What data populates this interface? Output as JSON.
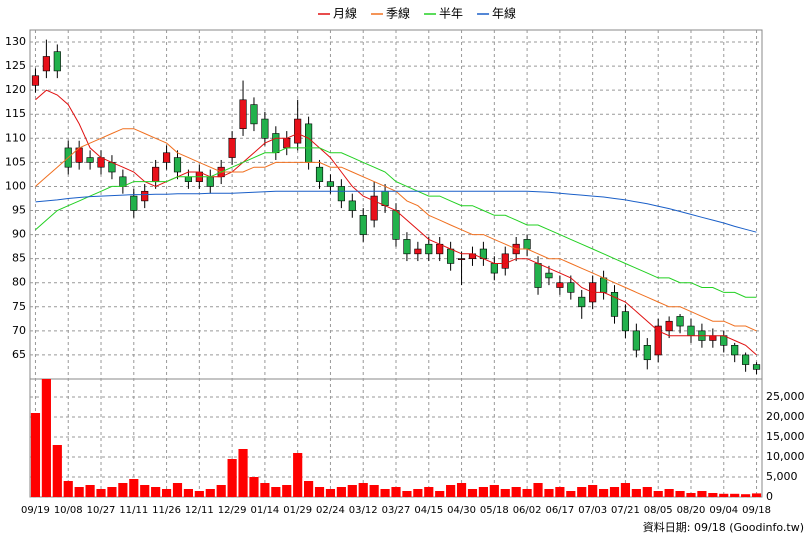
{
  "chart_data": [
    {
      "type": "candlestick",
      "categories": [
        "09/19",
        null,
        null,
        "10/08",
        null,
        null,
        "10/27",
        null,
        null,
        "11/11",
        null,
        null,
        "11/26",
        null,
        null,
        "12/11",
        null,
        null,
        "12/29",
        null,
        null,
        "01/14",
        null,
        null,
        "01/29",
        null,
        null,
        "02/24",
        null,
        null,
        "03/12",
        null,
        null,
        "03/27",
        null,
        null,
        "04/15",
        null,
        null,
        "04/30",
        null,
        null,
        "05/18",
        null,
        null,
        "06/02",
        null,
        null,
        "06/17",
        null,
        null,
        "07/03",
        null,
        null,
        "07/21",
        null,
        null,
        "08/05",
        null,
        null,
        "08/20",
        null,
        null,
        "09/04",
        null,
        null,
        "09/18"
      ],
      "open": [
        121,
        124,
        128,
        108,
        105,
        106,
        104,
        105,
        102,
        98,
        97,
        101,
        105,
        106,
        102,
        101,
        102,
        102,
        106,
        112,
        117,
        114,
        111,
        108,
        109,
        113,
        104,
        101,
        100,
        97,
        94,
        93,
        99,
        95,
        89,
        86,
        88,
        86,
        87,
        85,
        85,
        87,
        84,
        83,
        86,
        89,
        84,
        82,
        79,
        80,
        77,
        76,
        81,
        78,
        74,
        70,
        67,
        65,
        70,
        73,
        71,
        70,
        68,
        69,
        67,
        65,
        63
      ],
      "high": [
        124.5,
        130.5,
        129.5,
        109.5,
        109.5,
        107.5,
        107.5,
        106.5,
        103.5,
        99.5,
        100.5,
        105.5,
        108.5,
        107.5,
        103.5,
        104.5,
        103.5,
        105.5,
        111.5,
        122,
        118.5,
        115.5,
        112.5,
        111.5,
        118,
        114.5,
        105.5,
        102.5,
        101.5,
        98.5,
        95.5,
        101,
        100.5,
        96.5,
        90.5,
        88.5,
        89.5,
        89.5,
        88.5,
        86.5,
        87.5,
        88.5,
        85.5,
        87.5,
        89.5,
        90,
        85.5,
        83.5,
        81.5,
        81.5,
        78.5,
        81.5,
        82.5,
        79.5,
        75.5,
        71.5,
        68.5,
        72.5,
        73,
        73.5,
        72.5,
        71.5,
        70.5,
        70,
        67.5,
        65.5,
        63.5
      ],
      "low": [
        119.5,
        122.5,
        122.5,
        102.5,
        103.5,
        103.5,
        102.5,
        101.5,
        98.5,
        93.5,
        95.5,
        99.5,
        103.5,
        101.5,
        99.5,
        99.5,
        98.5,
        100.5,
        104.5,
        110.5,
        111.5,
        108.5,
        105.5,
        106.5,
        107.5,
        103.5,
        99.5,
        98.5,
        95.5,
        93.5,
        88.5,
        91.5,
        94.5,
        87.5,
        84.5,
        84.5,
        84.5,
        84.5,
        82.5,
        79.5,
        83.5,
        83.5,
        80.5,
        81.5,
        84.5,
        85.5,
        77.5,
        79.5,
        77.5,
        76.5,
        72.5,
        74.5,
        76.5,
        71.5,
        68.5,
        64.5,
        62,
        63.5,
        68.5,
        69.5,
        67.5,
        66.5,
        66.5,
        65.5,
        63.5,
        61.5,
        61
      ],
      "close": [
        123,
        127,
        124,
        104,
        108,
        105,
        106,
        103,
        100,
        95,
        99,
        104,
        107,
        103,
        101,
        103,
        100,
        104,
        110,
        118,
        113,
        110,
        107,
        110,
        114,
        105,
        101,
        100,
        97,
        95,
        90,
        98,
        96,
        89,
        86,
        87,
        86,
        88,
        84,
        85,
        86,
        85,
        82,
        86,
        88,
        87,
        79,
        81,
        80,
        78,
        75,
        80,
        78,
        73,
        70,
        66,
        64,
        71,
        72,
        71,
        69,
        68,
        69,
        67,
        65,
        63,
        62
      ],
      "up_color": "#e8101a",
      "down_color": "#22b14c",
      "series": [
        {
          "name": "月線",
          "color": "#e01010",
          "values": [
            118,
            120,
            119,
            117,
            113,
            108,
            106,
            105,
            104,
            103,
            101,
            100,
            101,
            102,
            103,
            103,
            102,
            102,
            103,
            105,
            107,
            109,
            110,
            110,
            111,
            110,
            108,
            106,
            103,
            100,
            98,
            97,
            96,
            95,
            93,
            91,
            89,
            88,
            87,
            86,
            86,
            85,
            84,
            84,
            85,
            85,
            84,
            83,
            82,
            81,
            79,
            78,
            78,
            77,
            76,
            74,
            72,
            70,
            69,
            69,
            69,
            69,
            69,
            69,
            68,
            67,
            65
          ]
        },
        {
          "name": "季線",
          "color": "#f07020",
          "values": [
            100,
            102,
            104,
            106,
            108,
            109,
            110,
            111,
            112,
            112,
            111,
            110,
            109,
            107,
            106,
            105,
            104,
            103,
            103,
            103,
            104,
            104,
            105,
            105,
            105,
            105,
            105,
            104,
            104,
            103,
            102,
            101,
            100,
            99,
            97,
            96,
            94,
            93,
            92,
            91,
            90,
            90,
            89,
            88,
            87,
            87,
            86,
            85,
            85,
            84,
            83,
            82,
            81,
            80,
            79,
            78,
            77,
            76,
            75,
            75,
            74,
            73,
            72,
            72,
            71,
            71,
            70
          ]
        },
        {
          "name": "半年",
          "color": "#22d022",
          "values": [
            91,
            93,
            95,
            96,
            97,
            98,
            99,
            100,
            100,
            101,
            101,
            101,
            101,
            102,
            102,
            102,
            102,
            103,
            104,
            105,
            106,
            107,
            107,
            108,
            108,
            108,
            108,
            107,
            107,
            106,
            105,
            104,
            103,
            101,
            100,
            99,
            98,
            98,
            97,
            96,
            96,
            95,
            94,
            94,
            93,
            92,
            92,
            91,
            90,
            89,
            88,
            87,
            86,
            85,
            84,
            83,
            82,
            81,
            81,
            80,
            80,
            79,
            79,
            78,
            78,
            77,
            77
          ]
        },
        {
          "name": "年線",
          "color": "#1a5fc8",
          "values": [
            96.8,
            97,
            97.2,
            97.5,
            97.7,
            97.9,
            98,
            98.1,
            98.2,
            98.3,
            98.3,
            98.4,
            98.4,
            98.5,
            98.5,
            98.5,
            98.6,
            98.6,
            98.6,
            98.7,
            98.8,
            98.9,
            99,
            99,
            99,
            99,
            99,
            99,
            99,
            99,
            99,
            99,
            99,
            99,
            99,
            99,
            99,
            99,
            99,
            99,
            99,
            99,
            99,
            99,
            99,
            99,
            98.9,
            98.8,
            98.6,
            98.4,
            98.2,
            98,
            97.8,
            97.5,
            97.2,
            96.8,
            96.4,
            95.9,
            95.4,
            94.8,
            94.2,
            93.6,
            93,
            92.4,
            91.7,
            91.1,
            90.5
          ]
        }
      ],
      "ylim": [
        60,
        132.5
      ],
      "yticks": [
        65,
        70,
        75,
        80,
        85,
        90,
        95,
        100,
        105,
        110,
        115,
        120,
        125,
        130
      ],
      "grid": true
    },
    {
      "type": "bar",
      "color": "#ff0000",
      "values": [
        21000,
        29500,
        13000,
        4000,
        2500,
        3000,
        2000,
        2500,
        3500,
        4500,
        3000,
        2500,
        2000,
        3500,
        2000,
        1500,
        2000,
        3000,
        9500,
        12000,
        5000,
        3500,
        2500,
        3000,
        11000,
        4000,
        2500,
        2000,
        2500,
        3000,
        3500,
        3000,
        2000,
        2500,
        1500,
        2000,
        2500,
        1500,
        3000,
        3500,
        2000,
        2500,
        3000,
        2000,
        2500,
        2000,
        3500,
        2000,
        2500,
        1500,
        2500,
        3000,
        2000,
        2500,
        3500,
        2000,
        2500,
        1500,
        2000,
        1500,
        1000,
        1500,
        1000,
        800,
        800,
        700,
        900
      ],
      "ylim": [
        0,
        29500
      ],
      "yticks": [
        0,
        {
          "value": 5000,
          "label": "5,000"
        },
        {
          "value": 10000,
          "label": "10,000"
        },
        {
          "value": 15000,
          "label": "15,000"
        },
        {
          "value": 20000,
          "label": "20,000"
        },
        {
          "value": 25000,
          "label": "25,000"
        }
      ],
      "note": "資料日期: 09/18 (Goodinfo.tw)"
    }
  ]
}
